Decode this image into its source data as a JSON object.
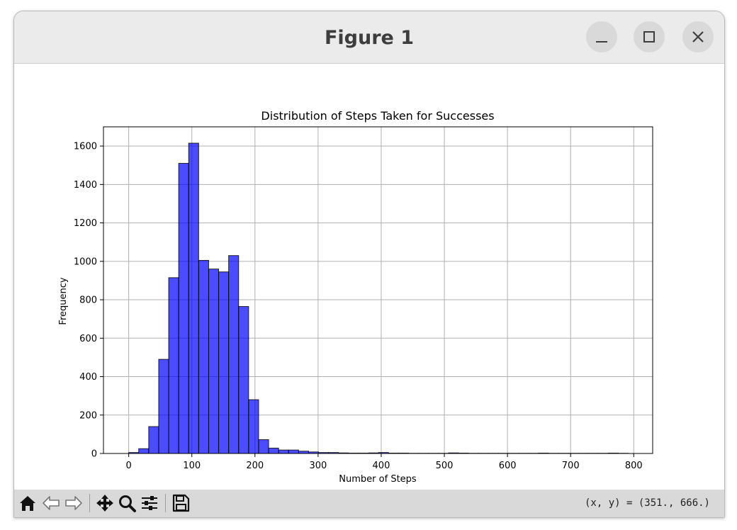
{
  "window": {
    "title": "Figure 1",
    "controls": [
      "minimize",
      "maximize",
      "close"
    ]
  },
  "toolbar": {
    "buttons": [
      {
        "name": "home",
        "icon": "home-icon"
      },
      {
        "name": "back",
        "icon": "back-arrow-icon"
      },
      {
        "name": "forward",
        "icon": "forward-arrow-icon"
      },
      {
        "name": "pan",
        "icon": "move-icon"
      },
      {
        "name": "zoom",
        "icon": "zoom-icon"
      },
      {
        "name": "configure",
        "icon": "sliders-icon"
      },
      {
        "name": "save",
        "icon": "save-icon"
      }
    ],
    "coords_text": "(x, y) = (351., 666.)"
  },
  "chart_data": {
    "type": "bar",
    "title": "Distribution of Steps Taken for Successes",
    "xlabel": "Number of Steps",
    "ylabel": "Frequency",
    "xlim": [
      -40,
      830
    ],
    "ylim": [
      0,
      1700
    ],
    "xticks": [
      0,
      100,
      200,
      300,
      400,
      500,
      600,
      700,
      800
    ],
    "yticks": [
      0,
      200,
      400,
      600,
      800,
      1000,
      1200,
      1400,
      1600
    ],
    "grid": true,
    "bin_width": 15.83,
    "bin_start": 0,
    "values": [
      5,
      25,
      140,
      490,
      915,
      1510,
      1615,
      1005,
      960,
      945,
      1030,
      765,
      280,
      72,
      28,
      18,
      18,
      12,
      8,
      5,
      5,
      3,
      2,
      2,
      3,
      5,
      2,
      2,
      1,
      1,
      1,
      1,
      3,
      2,
      1,
      1,
      1,
      1,
      1,
      1,
      1,
      2,
      1,
      1,
      1,
      1,
      1,
      1,
      2,
      1
    ],
    "bar_color": "#0000ff",
    "bar_alpha": 0.7,
    "edge_color": "#000000"
  }
}
